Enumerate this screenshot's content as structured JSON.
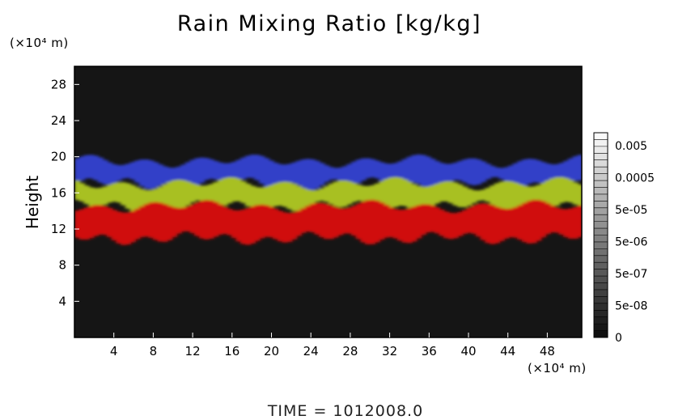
{
  "chart_data": {
    "type": "heatmap",
    "title": "Rain Mixing Ratio [kg/kg]",
    "xlabel": "",
    "ylabel": "Height",
    "x_unit": "(×10⁴ m)",
    "y_unit": "(×10⁴ m)",
    "xlim": [
      0,
      51.5
    ],
    "ylim": [
      0,
      30
    ],
    "x_ticks": [
      4,
      8,
      12,
      16,
      20,
      24,
      28,
      32,
      36,
      40,
      44,
      48
    ],
    "y_ticks": [
      4,
      8,
      12,
      16,
      20,
      24,
      28
    ],
    "colorbar": {
      "labels": [
        "0.005",
        "0.0005",
        "5e-05",
        "5e-06",
        "5e-07",
        "5e-08",
        "0"
      ]
    },
    "layers": [
      {
        "color": "#3040c8",
        "bottom": 17,
        "top": 19.5
      },
      {
        "color": "#a8c020",
        "bottom": 14.5,
        "top": 17
      },
      {
        "color": "#d01010",
        "bottom": 11,
        "top": 14.5
      }
    ],
    "colors": {
      "background": "#151515",
      "blue": "#3040c8",
      "green": "#a8c020",
      "red": "#d01010"
    },
    "footer": "TIME = 1012008.0"
  }
}
